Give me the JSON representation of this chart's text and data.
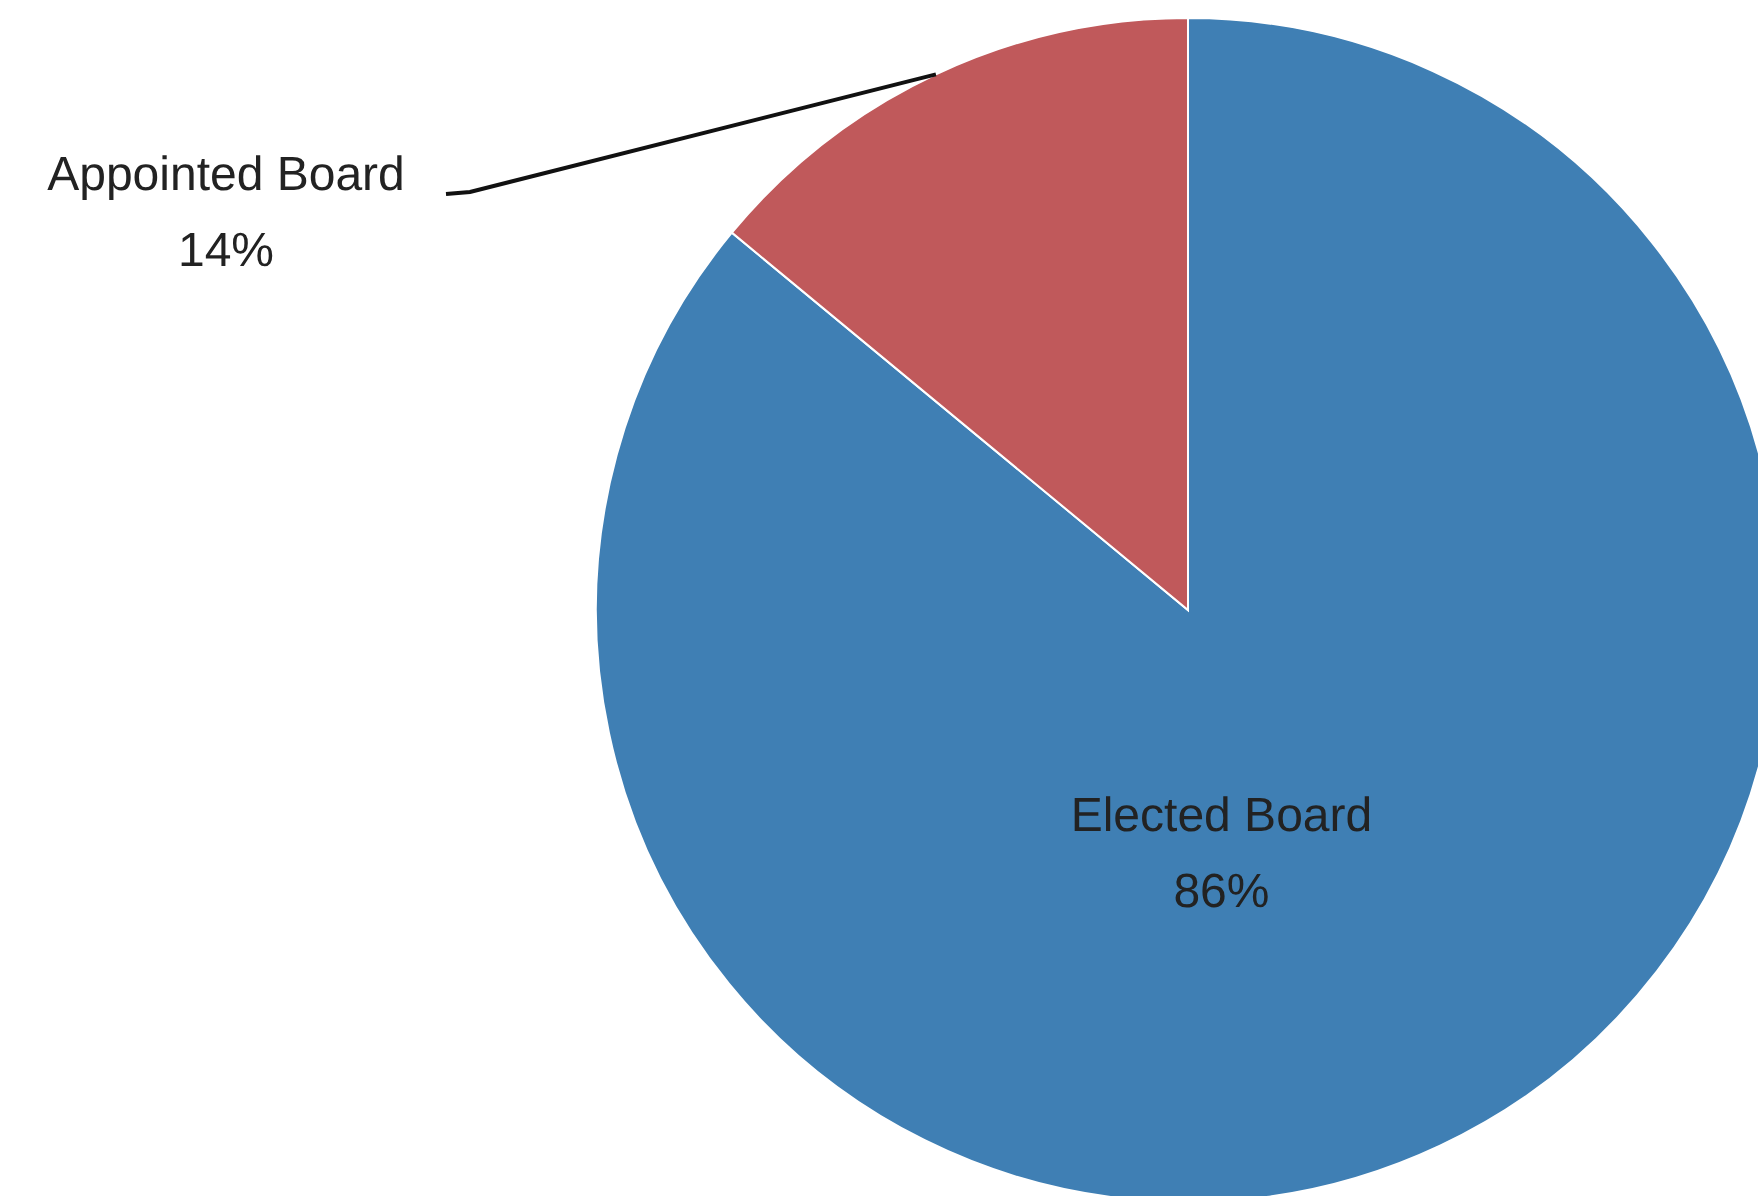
{
  "chart_data": {
    "type": "pie",
    "categories": [
      "Elected Board",
      "Appointed Board"
    ],
    "values": [
      86,
      14
    ],
    "value_labels": [
      "86%",
      "14%"
    ],
    "colors": [
      "#3f7fb4",
      "#c0595b"
    ]
  }
}
